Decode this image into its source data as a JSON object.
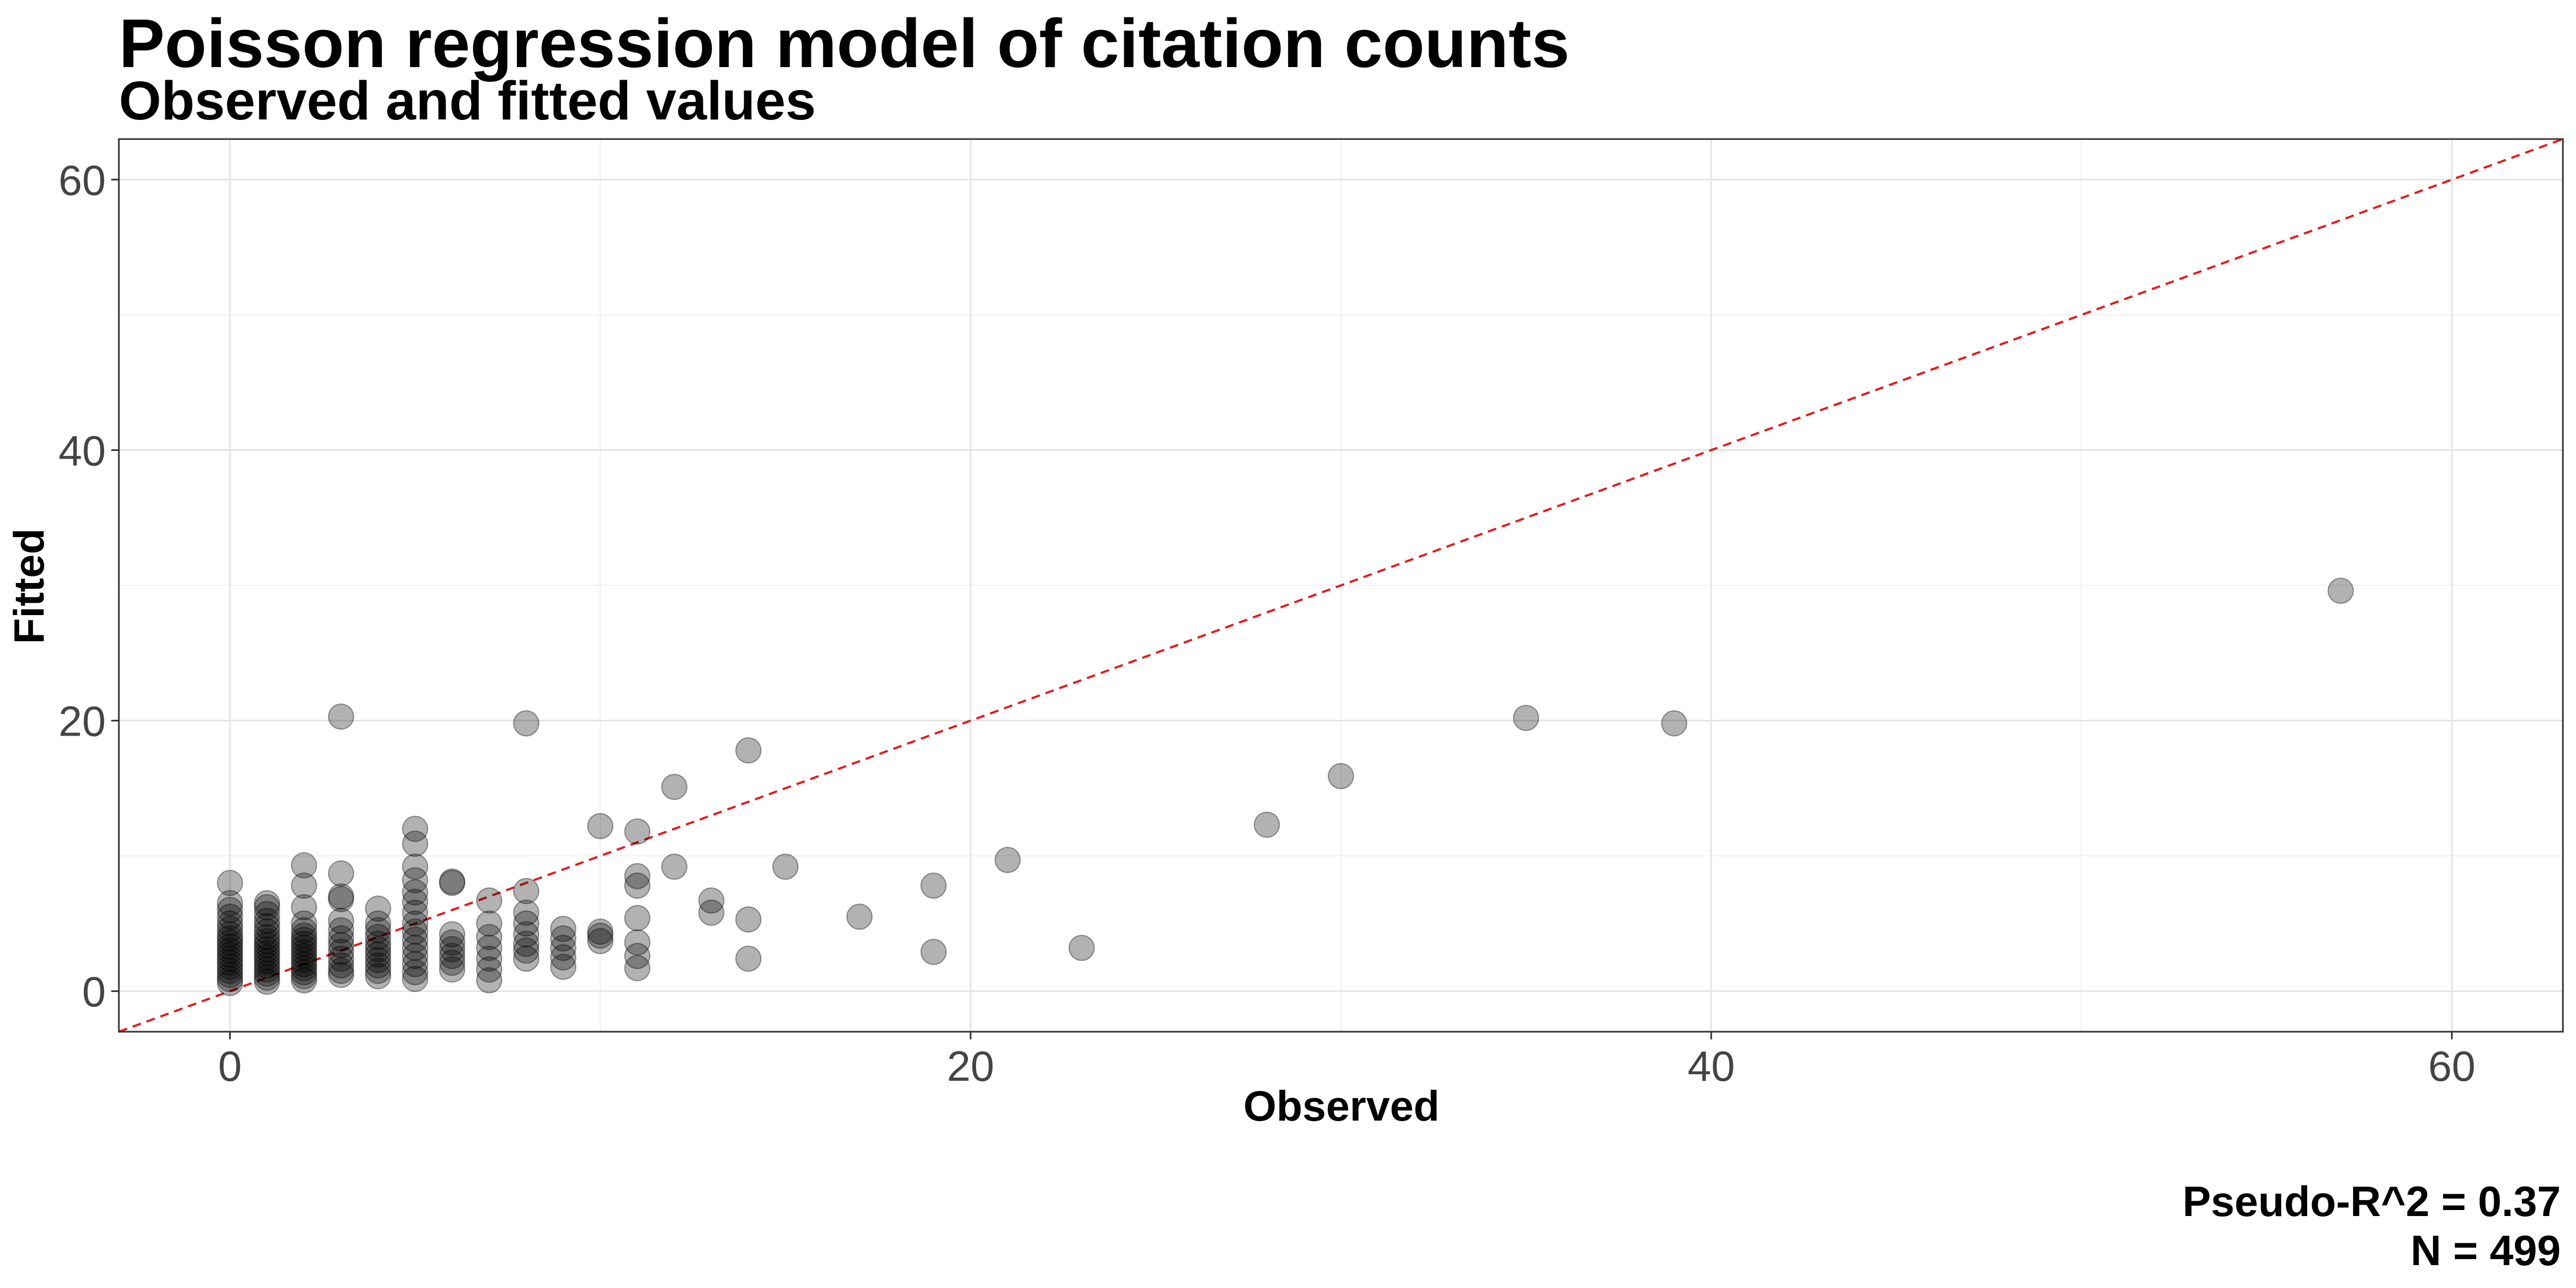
{
  "chart_data": {
    "type": "scatter",
    "title": "Poisson regression model of citation counts",
    "subtitle": "Observed and fitted values",
    "xlabel": "Observed",
    "ylabel": "Fitted",
    "xlim": [
      -3,
      63
    ],
    "ylim": [
      -3,
      63
    ],
    "x_ticks": [
      0,
      20,
      40,
      60
    ],
    "y_ticks": [
      0,
      20,
      40,
      60
    ],
    "grid": true,
    "reference_line": {
      "slope": 1,
      "intercept": 0,
      "style": "dashed",
      "color": "#e41a1c"
    },
    "point_color": "#000000",
    "point_opacity": 0.3,
    "points": [
      [
        0,
        0.6
      ],
      [
        0,
        0.9
      ],
      [
        0,
        1.2
      ],
      [
        0,
        1.5
      ],
      [
        0,
        1.8
      ],
      [
        0,
        2.1
      ],
      [
        0,
        2.4
      ],
      [
        0,
        2.7
      ],
      [
        0,
        3.0
      ],
      [
        0,
        3.3
      ],
      [
        0,
        3.6
      ],
      [
        0,
        3.9
      ],
      [
        0,
        4.2
      ],
      [
        0,
        4.6
      ],
      [
        0,
        5.0
      ],
      [
        0,
        5.5
      ],
      [
        0,
        6.0
      ],
      [
        0,
        6.5
      ],
      [
        0,
        8.0
      ],
      [
        1,
        0.7
      ],
      [
        1,
        1.0
      ],
      [
        1,
        1.3
      ],
      [
        1,
        1.6
      ],
      [
        1,
        1.9
      ],
      [
        1,
        2.2
      ],
      [
        1,
        2.5
      ],
      [
        1,
        2.8
      ],
      [
        1,
        3.1
      ],
      [
        1,
        3.4
      ],
      [
        1,
        3.7
      ],
      [
        1,
        4.0
      ],
      [
        1,
        4.4
      ],
      [
        1,
        4.8
      ],
      [
        1,
        5.2
      ],
      [
        1,
        5.7
      ],
      [
        1,
        6.2
      ],
      [
        1,
        6.5
      ],
      [
        2,
        0.8
      ],
      [
        2,
        1.1
      ],
      [
        2,
        1.4
      ],
      [
        2,
        1.7
      ],
      [
        2,
        2.0
      ],
      [
        2,
        2.3
      ],
      [
        2,
        2.6
      ],
      [
        2,
        2.9
      ],
      [
        2,
        3.2
      ],
      [
        2,
        3.5
      ],
      [
        2,
        3.8
      ],
      [
        2,
        4.1
      ],
      [
        2,
        4.5
      ],
      [
        2,
        5.0
      ],
      [
        2,
        6.2
      ],
      [
        2,
        7.8
      ],
      [
        2,
        9.3
      ],
      [
        3,
        1.2
      ],
      [
        3,
        1.5
      ],
      [
        3,
        1.9
      ],
      [
        3,
        2.4
      ],
      [
        3,
        2.9
      ],
      [
        3,
        3.4
      ],
      [
        3,
        3.9
      ],
      [
        3,
        4.5
      ],
      [
        3,
        5.2
      ],
      [
        3,
        6.8
      ],
      [
        3,
        7.0
      ],
      [
        3,
        8.7
      ],
      [
        3,
        20.3
      ],
      [
        4,
        1.1
      ],
      [
        4,
        1.5
      ],
      [
        4,
        1.9
      ],
      [
        4,
        2.3
      ],
      [
        4,
        2.7
      ],
      [
        4,
        3.1
      ],
      [
        4,
        3.5
      ],
      [
        4,
        4.0
      ],
      [
        4,
        4.5
      ],
      [
        4,
        5.0
      ],
      [
        4,
        6.1
      ],
      [
        5,
        0.9
      ],
      [
        5,
        1.4
      ],
      [
        5,
        2.0
      ],
      [
        5,
        2.6
      ],
      [
        5,
        3.2
      ],
      [
        5,
        3.8
      ],
      [
        5,
        4.4
      ],
      [
        5,
        5.0
      ],
      [
        5,
        5.8
      ],
      [
        5,
        6.6
      ],
      [
        5,
        7.3
      ],
      [
        5,
        8.2
      ],
      [
        5,
        9.2
      ],
      [
        5,
        10.9
      ],
      [
        5,
        12.0
      ],
      [
        6,
        1.6
      ],
      [
        6,
        2.1
      ],
      [
        6,
        2.6
      ],
      [
        6,
        3.1
      ],
      [
        6,
        3.6
      ],
      [
        6,
        4.2
      ],
      [
        6,
        8.0
      ],
      [
        6,
        8.1
      ],
      [
        7,
        0.8
      ],
      [
        7,
        1.6
      ],
      [
        7,
        2.4
      ],
      [
        7,
        3.2
      ],
      [
        7,
        4.0
      ],
      [
        7,
        5.0
      ],
      [
        7,
        6.7
      ],
      [
        8,
        2.4
      ],
      [
        8,
        3.0
      ],
      [
        8,
        3.5
      ],
      [
        8,
        4.2
      ],
      [
        8,
        5.0
      ],
      [
        8,
        5.8
      ],
      [
        8,
        7.4
      ],
      [
        8,
        19.8
      ],
      [
        9,
        1.8
      ],
      [
        9,
        2.5
      ],
      [
        9,
        3.2
      ],
      [
        9,
        3.9
      ],
      [
        9,
        4.6
      ],
      [
        10,
        3.7
      ],
      [
        10,
        4.1
      ],
      [
        10,
        4.4
      ],
      [
        10,
        12.2
      ],
      [
        11,
        1.7
      ],
      [
        11,
        2.6
      ],
      [
        11,
        3.6
      ],
      [
        11,
        5.4
      ],
      [
        11,
        7.8
      ],
      [
        11,
        8.5
      ],
      [
        11,
        11.8
      ],
      [
        12,
        9.2
      ],
      [
        12,
        15.1
      ],
      [
        13,
        5.8
      ],
      [
        13,
        6.7
      ],
      [
        14,
        2.4
      ],
      [
        14,
        5.3
      ],
      [
        14,
        17.8
      ],
      [
        15,
        9.2
      ],
      [
        17,
        5.5
      ],
      [
        19,
        2.9
      ],
      [
        19,
        7.8
      ],
      [
        21,
        9.7
      ],
      [
        23,
        3.2
      ],
      [
        28,
        12.3
      ],
      [
        30,
        15.9
      ],
      [
        35,
        20.2
      ],
      [
        39,
        19.8
      ],
      [
        57,
        29.6
      ]
    ]
  },
  "caption": {
    "line1": "Pseudo-R^2 = 0.37",
    "line2": "N = 499"
  }
}
